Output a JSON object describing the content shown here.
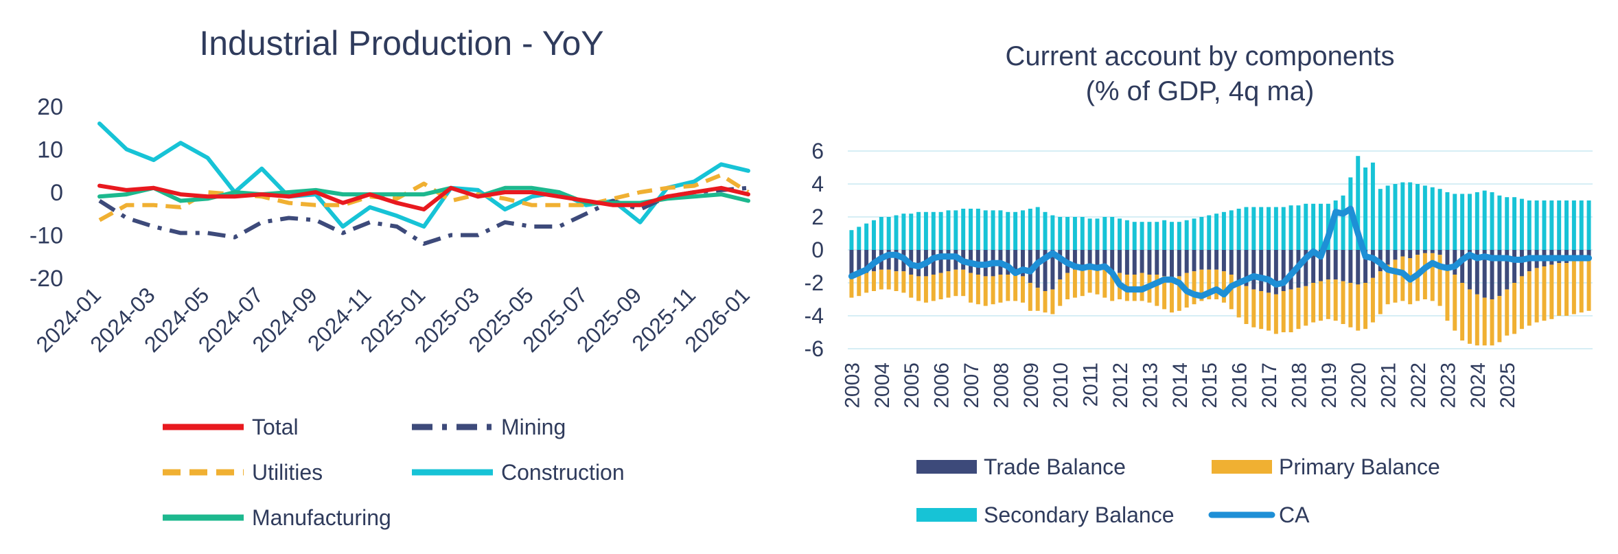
{
  "chart_data": [
    {
      "type": "line",
      "title": "Industrial Production - YoY",
      "xlabel": "",
      "ylabel": "",
      "ylim": [
        -20,
        20
      ],
      "yticks": [
        20,
        10,
        0,
        -10,
        -20
      ],
      "x": [
        "2024-01",
        "2024-02",
        "2024-03",
        "2024-04",
        "2024-05",
        "2024-06",
        "2024-07",
        "2024-08",
        "2024-09",
        "2024-10",
        "2024-11",
        "2024-12",
        "2025-01",
        "2025-02",
        "2025-03",
        "2025-04",
        "2025-05",
        "2025-06",
        "2025-07",
        "2025-08",
        "2025-09",
        "2025-10",
        "2025-11",
        "2025-12",
        "2026-01"
      ],
      "xtick_labels": [
        "2024-01",
        "2024-03",
        "2024-05",
        "2024-07",
        "2024-09",
        "2024-11",
        "2025-01",
        "2025-03",
        "2025-05",
        "2025-07",
        "2025-09",
        "2025-11",
        "2026-01"
      ],
      "series": [
        {
          "name": "Total",
          "color": "#e8191f",
          "dash": "solid",
          "values": [
            1.5,
            0.5,
            1,
            -0.5,
            -1,
            -1,
            -0.5,
            -1,
            0,
            -2.5,
            -0.5,
            -2.5,
            -4,
            1,
            -1,
            0,
            0,
            -1,
            -2,
            -3,
            -3,
            -1,
            0,
            1,
            -0.5
          ]
        },
        {
          "name": "Mining",
          "color": "#3d4a7a",
          "dash": "dashdot",
          "values": [
            -2,
            -6,
            -8,
            -9.5,
            -9.5,
            -10.5,
            -7,
            -6,
            -6.5,
            -9.5,
            -7,
            -8,
            -12,
            -10,
            -10,
            -7,
            -8,
            -8,
            -5,
            -2,
            -4,
            -1,
            0,
            0.5,
            1
          ]
        },
        {
          "name": "Utilities",
          "color": "#f0b032",
          "dash": "dash",
          "values": [
            -6.5,
            -3,
            -3,
            -3.5,
            0,
            -0.5,
            -1,
            -2.5,
            -3,
            -3,
            -1,
            -1.5,
            2,
            -2,
            -0.5,
            -1.5,
            -3,
            -3,
            -3,
            -1.5,
            0,
            1,
            1.5,
            4,
            0
          ]
        },
        {
          "name": "Construction",
          "color": "#17c3d6",
          "dash": "solid",
          "values": [
            16,
            10,
            7.5,
            11.5,
            8,
            0,
            5.5,
            -1,
            -0.5,
            -8,
            -3.5,
            -5.5,
            -8,
            1,
            0.5,
            -4,
            -1,
            0,
            -3,
            -2,
            -7,
            1,
            2.5,
            6.5,
            5
          ]
        },
        {
          "name": "Manufacturing",
          "color": "#1db88e",
          "dash": "solid",
          "values": [
            -1,
            -0.5,
            1,
            -2,
            -1.5,
            0,
            -0.5,
            0,
            0.5,
            -0.5,
            -0.5,
            -0.5,
            -0.5,
            1,
            -1,
            1,
            1,
            0,
            -2.5,
            -2.5,
            -2.5,
            -1.5,
            -1,
            -0.5,
            -2
          ]
        }
      ],
      "legend": [
        "Total",
        "Mining",
        "Utilities",
        "Construction",
        "Manufacturing"
      ]
    },
    {
      "type": "bar",
      "title": "Current account by components",
      "subtitle": "(% of GDP, 4q ma)",
      "xlabel": "",
      "ylabel": "",
      "ylim": [
        -6,
        6
      ],
      "yticks": [
        6,
        4,
        2,
        0,
        -2,
        -4,
        -6
      ],
      "year_start": 2003,
      "quarters_per_year": 4,
      "xtick_labels": [
        "2003",
        "2004",
        "2005",
        "2006",
        "2007",
        "2008",
        "2009",
        "2010",
        "2011",
        "2012",
        "2013",
        "2014",
        "2015",
        "2016",
        "2017",
        "2018",
        "2019",
        "2020",
        "2021",
        "2022",
        "2023",
        "2024",
        "2025"
      ],
      "series": [
        {
          "name": "Trade Balance",
          "color": "#3d4a7a",
          "type": "bar",
          "values": [
            -1.6,
            -1.5,
            -1.4,
            -1.3,
            -1.2,
            -1.2,
            -1.3,
            -1.3,
            -1.5,
            -1.6,
            -1.6,
            -1.5,
            -1.4,
            -1.3,
            -1.2,
            -1.2,
            -1.4,
            -1.5,
            -1.6,
            -1.6,
            -1.5,
            -1.5,
            -1.5,
            -1.6,
            -2.0,
            -2.3,
            -2.5,
            -2.4,
            -1.8,
            -1.4,
            -1.2,
            -1.1,
            -1.0,
            -1.1,
            -1.2,
            -1.3,
            -1.4,
            -1.5,
            -1.5,
            -1.4,
            -1.5,
            -1.5,
            -1.6,
            -1.7,
            -1.6,
            -1.4,
            -1.3,
            -1.2,
            -1.2,
            -1.2,
            -1.3,
            -1.5,
            -1.9,
            -2.2,
            -2.4,
            -2.5,
            -2.6,
            -2.7,
            -2.5,
            -2.4,
            -2.3,
            -2.2,
            -2.0,
            -1.9,
            -1.8,
            -1.8,
            -1.9,
            -2.0,
            -2.1,
            -2.0,
            -1.7,
            -1.3,
            -0.9,
            -0.6,
            -0.4,
            -0.5,
            -0.3,
            -0.2,
            -0.2,
            -0.3,
            -1.0,
            -1.5,
            -2.0,
            -2.4,
            -2.7,
            -2.9,
            -3.0,
            -2.8,
            -2.4,
            -2.0,
            -1.6,
            -1.3,
            -1.1,
            -1.0,
            -0.9,
            -0.8,
            -0.8,
            -0.6,
            -0.5,
            -0.4
          ]
        },
        {
          "name": "Primary Balance",
          "color": "#f0b032",
          "type": "bar",
          "values": [
            -1.3,
            -1.3,
            -1.2,
            -1.2,
            -1.2,
            -1.2,
            -1.2,
            -1.3,
            -1.4,
            -1.5,
            -1.6,
            -1.6,
            -1.6,
            -1.6,
            -1.6,
            -1.6,
            -1.8,
            -1.8,
            -1.8,
            -1.7,
            -1.7,
            -1.6,
            -1.6,
            -1.6,
            -1.7,
            -1.4,
            -1.3,
            -1.5,
            -1.6,
            -1.6,
            -1.7,
            -1.7,
            -1.6,
            -1.6,
            -1.7,
            -1.8,
            -1.6,
            -1.6,
            -1.6,
            -1.7,
            -1.7,
            -1.9,
            -2.0,
            -2.1,
            -2.1,
            -2.1,
            -2.0,
            -1.9,
            -1.8,
            -1.8,
            -1.9,
            -2.1,
            -2.2,
            -2.3,
            -2.3,
            -2.3,
            -2.3,
            -2.4,
            -2.5,
            -2.6,
            -2.5,
            -2.4,
            -2.4,
            -2.4,
            -2.4,
            -2.5,
            -2.6,
            -2.7,
            -2.8,
            -2.8,
            -2.7,
            -2.6,
            -2.4,
            -2.6,
            -2.7,
            -2.8,
            -2.8,
            -2.8,
            -2.9,
            -3.1,
            -3.3,
            -3.4,
            -3.5,
            -3.3,
            -3.1,
            -2.9,
            -2.8,
            -2.8,
            -2.8,
            -3.1,
            -3.2,
            -3.3,
            -3.3,
            -3.3,
            -3.3,
            -3.2,
            -3.2,
            -3.3,
            -3.3,
            -3.3
          ]
        },
        {
          "name": "Secondary Balance",
          "color": "#17c3d6",
          "type": "bar",
          "values": [
            1.2,
            1.4,
            1.6,
            1.8,
            2.0,
            2.0,
            2.1,
            2.2,
            2.2,
            2.3,
            2.3,
            2.3,
            2.3,
            2.4,
            2.4,
            2.5,
            2.5,
            2.5,
            2.4,
            2.4,
            2.4,
            2.3,
            2.3,
            2.4,
            2.5,
            2.6,
            2.3,
            2.1,
            2.0,
            2.0,
            2.0,
            2.0,
            1.9,
            1.9,
            2.0,
            2.0,
            1.9,
            1.8,
            1.7,
            1.7,
            1.7,
            1.7,
            1.8,
            1.7,
            1.7,
            1.8,
            1.9,
            2.0,
            2.1,
            2.2,
            2.3,
            2.4,
            2.5,
            2.6,
            2.6,
            2.6,
            2.6,
            2.6,
            2.6,
            2.7,
            2.7,
            2.8,
            2.8,
            2.8,
            2.8,
            3.0,
            3.3,
            4.4,
            5.7,
            5.0,
            5.3,
            3.7,
            3.9,
            4.0,
            4.1,
            4.1,
            4.0,
            3.9,
            3.8,
            3.7,
            3.5,
            3.4,
            3.4,
            3.4,
            3.5,
            3.6,
            3.5,
            3.3,
            3.2,
            3.2,
            3.1,
            3.0,
            3.0,
            3.0,
            3.0,
            3.0,
            3.0,
            3.0,
            3.0,
            3.0
          ]
        },
        {
          "name": "CA",
          "color": "#1e8fd6",
          "type": "line",
          "values": [
            -1.6,
            -1.4,
            -1.2,
            -0.8,
            -0.5,
            -0.3,
            -0.3,
            -0.5,
            -0.9,
            -1.0,
            -0.8,
            -0.5,
            -0.4,
            -0.4,
            -0.4,
            -0.7,
            -0.8,
            -0.9,
            -0.9,
            -0.8,
            -0.8,
            -1.0,
            -1.4,
            -1.2,
            -1.3,
            -0.8,
            -0.5,
            -0.2,
            -0.5,
            -0.8,
            -1.0,
            -1.1,
            -1.0,
            -1.1,
            -1.0,
            -1.4,
            -2.1,
            -2.4,
            -2.4,
            -2.4,
            -2.2,
            -2.0,
            -1.8,
            -1.8,
            -2.0,
            -2.5,
            -2.7,
            -2.8,
            -2.6,
            -2.4,
            -2.7,
            -2.2,
            -2.0,
            -1.8,
            -1.6,
            -1.7,
            -1.8,
            -2.1,
            -2.0,
            -1.5,
            -1.0,
            -0.5,
            -0.1,
            -0.4,
            0.8,
            2.3,
            2.2,
            2.5,
            1.0,
            -0.4,
            -0.5,
            -0.8,
            -1.2,
            -1.3,
            -1.4,
            -1.8,
            -1.5,
            -1.1,
            -0.8,
            -1.0,
            -1.1,
            -1.0,
            -0.6,
            -0.3,
            -0.5,
            -0.4,
            -0.5,
            -0.5,
            -0.5,
            -0.6,
            -0.6,
            -0.5,
            -0.5,
            -0.5,
            -0.5,
            -0.5,
            -0.5,
            -0.5,
            -0.5,
            -0.5
          ]
        }
      ],
      "legend": [
        "Trade Balance",
        "Primary Balance",
        "Secondary Balance",
        "CA"
      ]
    }
  ]
}
